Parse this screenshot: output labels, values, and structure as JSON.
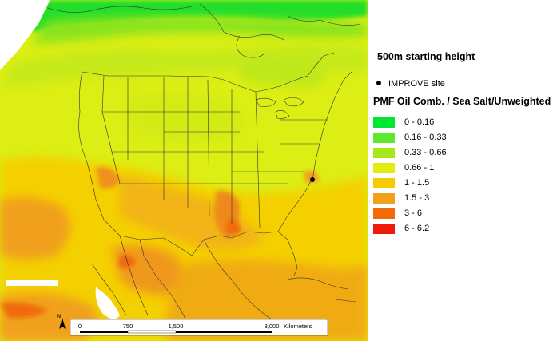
{
  "legend": {
    "title": "500m starting height",
    "site_label": "IMPROVE site",
    "layer_title": "PMF Oil Comb. / Sea Salt/Unweighted",
    "classes": [
      {
        "label": "0 - 0.16",
        "color": "#00e632"
      },
      {
        "label": "0.16 - 0.33",
        "color": "#5ee82a"
      },
      {
        "label": "0.33 - 0.66",
        "color": "#a6e81a"
      },
      {
        "label": "0.66 - 1",
        "color": "#e2ee12"
      },
      {
        "label": "1 - 1.5",
        "color": "#f4cd00"
      },
      {
        "label": "1.5 - 3",
        "color": "#f0a01a"
      },
      {
        "label": "3 - 6",
        "color": "#f06a0a"
      },
      {
        "label": "6 - 6.2",
        "color": "#f01a0a"
      }
    ]
  },
  "scalebar": {
    "north_label": "N",
    "ticks": [
      "0",
      "750",
      "1,500",
      "3,000"
    ],
    "unit": "Kilometers"
  }
}
